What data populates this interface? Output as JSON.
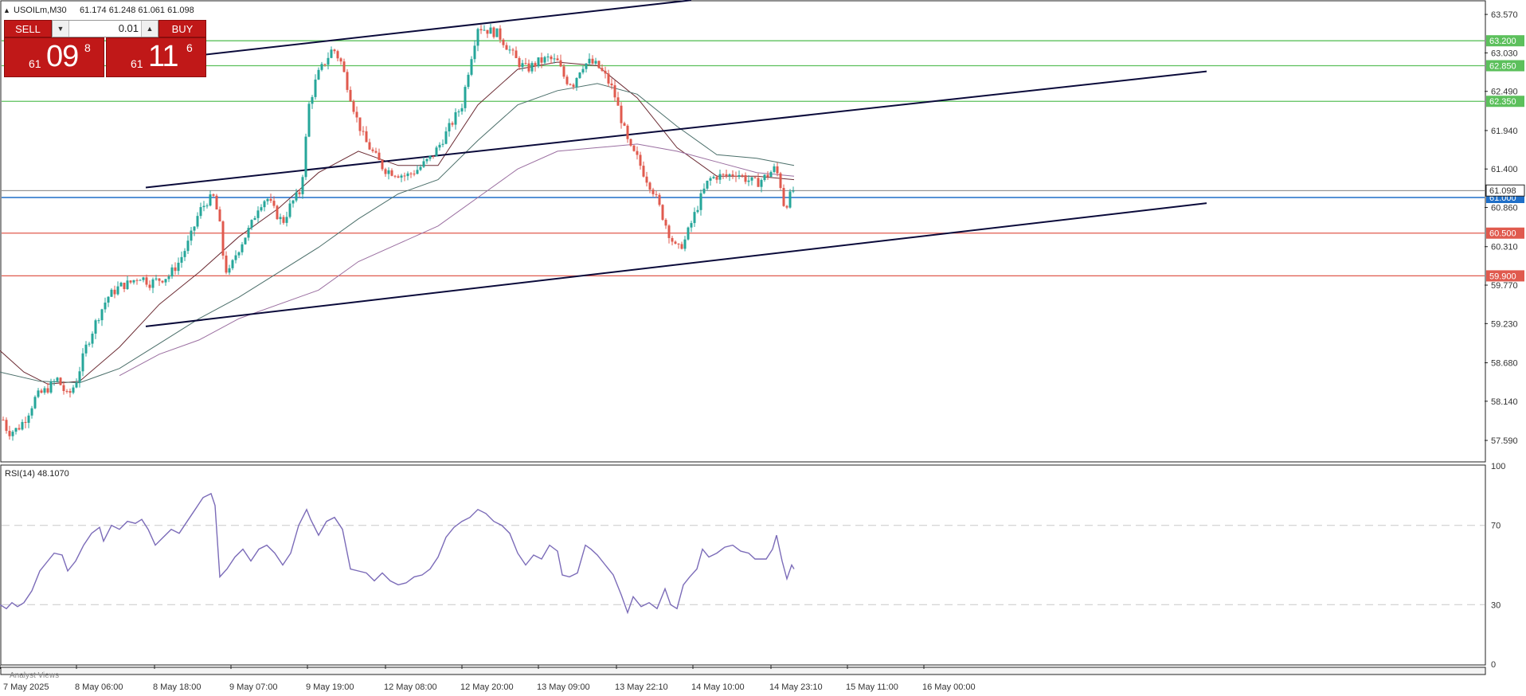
{
  "header": {
    "symbol_label": "USOILm,M30",
    "ohlc": "61.174 61.248 61.061 61.098"
  },
  "trade_panel": {
    "sell_label": "SELL",
    "buy_label": "BUY",
    "lot_value": "0.01",
    "sell_price": {
      "small": "61",
      "big": "09",
      "sup": "8"
    },
    "buy_price": {
      "small": "61",
      "big": "11",
      "sup": "6"
    }
  },
  "indicator": {
    "label": "RSI(14) 48.1070",
    "levels": [
      70,
      30
    ],
    "scale_labels": [
      "100",
      "70",
      "30",
      "0"
    ]
  },
  "bottom_bar_label": "Analyst Views",
  "colors": {
    "bull": "#26a69a",
    "bear": "#e05a4e",
    "support": "#e05a4e",
    "resistance": "#5cc05c",
    "pivot": "#1f6fc8",
    "channel": "#0a0a3a",
    "rsi": "#7b6bb8",
    "ma_fast": "#6b2a32",
    "ma_mid": "#4b6f6a",
    "ma_slow": "#9a6ea0"
  },
  "chart_data": {
    "type": "candlestick",
    "symbol": "USOILm",
    "timeframe": "M30",
    "y_axis": {
      "range": [
        57.3,
        63.75
      ],
      "ticks": [
        63.57,
        63.03,
        62.49,
        61.94,
        61.4,
        60.86,
        60.31,
        59.77,
        59.23,
        58.68,
        58.14,
        57.59
      ]
    },
    "x_tick_labels": [
      "7 May 2025",
      "8 May 06:00",
      "8 May 18:00",
      "9 May 07:00",
      "9 May 19:00",
      "12 May 08:00",
      "12 May 20:00",
      "13 May 09:00",
      "13 May 22:10",
      "14 May 10:00",
      "14 May 23:10",
      "15 May 11:00",
      "16 May 00:00"
    ],
    "current_price": "61.098",
    "price_levels": [
      {
        "value": 63.2,
        "label": "63.200",
        "kind": "resistance"
      },
      {
        "value": 62.85,
        "label": "62.850",
        "kind": "resistance"
      },
      {
        "value": 62.35,
        "label": "62.350",
        "kind": "resistance"
      },
      {
        "value": 61.0,
        "label": "61.000",
        "kind": "pivot"
      },
      {
        "value": 60.5,
        "label": "60.500",
        "kind": "support"
      },
      {
        "value": 59.9,
        "label": "59.900",
        "kind": "support"
      }
    ],
    "close_path": [
      [
        0,
        58.0
      ],
      [
        10,
        57.7
      ],
      [
        22,
        57.75
      ],
      [
        32,
        57.9
      ],
      [
        45,
        58.2
      ],
      [
        58,
        58.3
      ],
      [
        72,
        58.45
      ],
      [
        85,
        58.2
      ],
      [
        95,
        58.4
      ],
      [
        108,
        58.9
      ],
      [
        122,
        59.3
      ],
      [
        135,
        59.6
      ],
      [
        150,
        59.75
      ],
      [
        163,
        59.8
      ],
      [
        175,
        59.9
      ],
      [
        188,
        59.8
      ],
      [
        200,
        59.85
      ],
      [
        212,
        59.9
      ],
      [
        225,
        60.1
      ],
      [
        238,
        60.4
      ],
      [
        250,
        60.8
      ],
      [
        260,
        60.95
      ],
      [
        268,
        61.0
      ],
      [
        275,
        60.7
      ],
      [
        282,
        60.0
      ],
      [
        288,
        59.95
      ],
      [
        296,
        60.2
      ],
      [
        305,
        60.4
      ],
      [
        315,
        60.6
      ],
      [
        325,
        60.9
      ],
      [
        335,
        61.0
      ],
      [
        345,
        60.8
      ],
      [
        355,
        60.65
      ],
      [
        365,
        60.9
      ],
      [
        378,
        61.1
      ],
      [
        388,
        62.3
      ],
      [
        398,
        62.7
      ],
      [
        408,
        62.9
      ],
      [
        418,
        63.1
      ],
      [
        428,
        62.9
      ],
      [
        438,
        62.5
      ],
      [
        448,
        62.1
      ],
      [
        458,
        61.8
      ],
      [
        470,
        61.6
      ],
      [
        482,
        61.4
      ],
      [
        495,
        61.35
      ],
      [
        510,
        61.3
      ],
      [
        525,
        61.4
      ],
      [
        540,
        61.55
      ],
      [
        550,
        61.7
      ],
      [
        560,
        61.9
      ],
      [
        570,
        62.1
      ],
      [
        580,
        62.3
      ],
      [
        590,
        62.9
      ],
      [
        600,
        63.4
      ],
      [
        612,
        63.35
      ],
      [
        625,
        63.3
      ],
      [
        638,
        63.1
      ],
      [
        650,
        62.9
      ],
      [
        662,
        62.8
      ],
      [
        675,
        62.9
      ],
      [
        688,
        62.95
      ],
      [
        700,
        62.9
      ],
      [
        710,
        62.65
      ],
      [
        720,
        62.6
      ],
      [
        730,
        62.85
      ],
      [
        740,
        62.9
      ],
      [
        750,
        62.85
      ],
      [
        760,
        62.7
      ],
      [
        770,
        62.5
      ],
      [
        780,
        62.1
      ],
      [
        790,
        61.7
      ],
      [
        800,
        61.55
      ],
      [
        810,
        61.3
      ],
      [
        820,
        61.1
      ],
      [
        830,
        60.8
      ],
      [
        840,
        60.5
      ],
      [
        850,
        60.25
      ],
      [
        860,
        60.4
      ],
      [
        870,
        60.7
      ],
      [
        880,
        61.0
      ],
      [
        890,
        61.25
      ],
      [
        900,
        61.3
      ],
      [
        912,
        61.3
      ],
      [
        925,
        61.35
      ],
      [
        938,
        61.25
      ],
      [
        950,
        61.2
      ],
      [
        962,
        61.3
      ],
      [
        972,
        61.4
      ],
      [
        978,
        61.3
      ],
      [
        985,
        60.85
      ],
      [
        991,
        61.0
      ],
      [
        996,
        61.098
      ]
    ],
    "moving_averages": [
      {
        "key": "ma_fast",
        "points": [
          [
            0,
            58.85
          ],
          [
            30,
            58.55
          ],
          [
            60,
            58.38
          ],
          [
            100,
            58.42
          ],
          [
            150,
            58.9
          ],
          [
            200,
            59.5
          ],
          [
            250,
            59.95
          ],
          [
            300,
            60.45
          ],
          [
            350,
            60.85
          ],
          [
            400,
            61.35
          ],
          [
            450,
            61.65
          ],
          [
            500,
            61.45
          ],
          [
            550,
            61.45
          ],
          [
            600,
            62.3
          ],
          [
            650,
            62.8
          ],
          [
            700,
            62.9
          ],
          [
            750,
            62.85
          ],
          [
            800,
            62.4
          ],
          [
            850,
            61.7
          ],
          [
            900,
            61.3
          ],
          [
            950,
            61.3
          ],
          [
            997,
            61.25
          ]
        ]
      },
      {
        "key": "ma_mid",
        "points": [
          [
            0,
            58.55
          ],
          [
            50,
            58.42
          ],
          [
            100,
            58.4
          ],
          [
            150,
            58.6
          ],
          [
            200,
            58.95
          ],
          [
            250,
            59.3
          ],
          [
            300,
            59.6
          ],
          [
            350,
            59.95
          ],
          [
            400,
            60.3
          ],
          [
            450,
            60.7
          ],
          [
            500,
            61.05
          ],
          [
            550,
            61.25
          ],
          [
            600,
            61.8
          ],
          [
            650,
            62.3
          ],
          [
            700,
            62.5
          ],
          [
            750,
            62.6
          ],
          [
            800,
            62.45
          ],
          [
            850,
            62.0
          ],
          [
            900,
            61.6
          ],
          [
            950,
            61.55
          ],
          [
            997,
            61.45
          ]
        ]
      },
      {
        "key": "ma_slow",
        "points": [
          [
            150,
            58.5
          ],
          [
            200,
            58.8
          ],
          [
            250,
            59.0
          ],
          [
            300,
            59.3
          ],
          [
            350,
            59.5
          ],
          [
            400,
            59.7
          ],
          [
            450,
            60.1
          ],
          [
            500,
            60.35
          ],
          [
            550,
            60.6
          ],
          [
            600,
            61.0
          ],
          [
            650,
            61.4
          ],
          [
            700,
            61.65
          ],
          [
            750,
            61.7
          ],
          [
            800,
            61.75
          ],
          [
            850,
            61.65
          ],
          [
            900,
            61.5
          ],
          [
            950,
            61.35
          ],
          [
            997,
            61.3
          ]
        ]
      }
    ],
    "channel_lines": [
      [
        [
          213,
          62.95
        ],
        [
          868,
          63.77
        ]
      ],
      [
        [
          183,
          61.14
        ],
        [
          1515,
          62.77
        ]
      ],
      [
        [
          183,
          59.19
        ],
        [
          1515,
          60.92
        ]
      ]
    ],
    "rsi": {
      "range": [
        0,
        100
      ],
      "levels": [
        70,
        30
      ],
      "points": [
        [
          0,
          30
        ],
        [
          8,
          28
        ],
        [
          15,
          31
        ],
        [
          22,
          29
        ],
        [
          30,
          31
        ],
        [
          40,
          37
        ],
        [
          50,
          47
        ],
        [
          60,
          52
        ],
        [
          68,
          56
        ],
        [
          78,
          55
        ],
        [
          85,
          47
        ],
        [
          95,
          52
        ],
        [
          105,
          60
        ],
        [
          115,
          66
        ],
        [
          125,
          69
        ],
        [
          130,
          62
        ],
        [
          140,
          70
        ],
        [
          150,
          68
        ],
        [
          160,
          72
        ],
        [
          170,
          71
        ],
        [
          178,
          73
        ],
        [
          186,
          68
        ],
        [
          195,
          60
        ],
        [
          205,
          64
        ],
        [
          215,
          68
        ],
        [
          225,
          66
        ],
        [
          235,
          72
        ],
        [
          245,
          78
        ],
        [
          255,
          84
        ],
        [
          265,
          86
        ],
        [
          270,
          80
        ],
        [
          276,
          44
        ],
        [
          285,
          48
        ],
        [
          295,
          54
        ],
        [
          305,
          58
        ],
        [
          315,
          52
        ],
        [
          325,
          58
        ],
        [
          335,
          60
        ],
        [
          345,
          56
        ],
        [
          355,
          50
        ],
        [
          365,
          56
        ],
        [
          375,
          70
        ],
        [
          385,
          78
        ],
        [
          390,
          73
        ],
        [
          400,
          65
        ],
        [
          410,
          72
        ],
        [
          420,
          74
        ],
        [
          430,
          68
        ],
        [
          440,
          48
        ],
        [
          450,
          47
        ],
        [
          460,
          46
        ],
        [
          470,
          42
        ],
        [
          480,
          46
        ],
        [
          490,
          42
        ],
        [
          500,
          40
        ],
        [
          510,
          41
        ],
        [
          520,
          44
        ],
        [
          530,
          45
        ],
        [
          540,
          48
        ],
        [
          550,
          54
        ],
        [
          560,
          64
        ],
        [
          570,
          69
        ],
        [
          580,
          72
        ],
        [
          590,
          74
        ],
        [
          600,
          78
        ],
        [
          610,
          76
        ],
        [
          620,
          72
        ],
        [
          630,
          70
        ],
        [
          640,
          66
        ],
        [
          650,
          56
        ],
        [
          660,
          50
        ],
        [
          670,
          55
        ],
        [
          680,
          53
        ],
        [
          690,
          60
        ],
        [
          700,
          57
        ],
        [
          706,
          45
        ],
        [
          715,
          44
        ],
        [
          725,
          46
        ],
        [
          735,
          60
        ],
        [
          742,
          58
        ],
        [
          750,
          55
        ],
        [
          760,
          50
        ],
        [
          770,
          45
        ],
        [
          780,
          35
        ],
        [
          788,
          26
        ],
        [
          795,
          34
        ],
        [
          805,
          29
        ],
        [
          815,
          31
        ],
        [
          825,
          28
        ],
        [
          835,
          38
        ],
        [
          842,
          30
        ],
        [
          850,
          28
        ],
        [
          858,
          40
        ],
        [
          866,
          44
        ],
        [
          875,
          48
        ],
        [
          882,
          58
        ],
        [
          890,
          54
        ],
        [
          900,
          56
        ],
        [
          910,
          59
        ],
        [
          920,
          60
        ],
        [
          930,
          57
        ],
        [
          940,
          56
        ],
        [
          948,
          53
        ],
        [
          956,
          53
        ],
        [
          962,
          53
        ],
        [
          970,
          58
        ],
        [
          975,
          65
        ],
        [
          982,
          52
        ],
        [
          988,
          43
        ],
        [
          994,
          50
        ],
        [
          997,
          48
        ]
      ]
    }
  }
}
